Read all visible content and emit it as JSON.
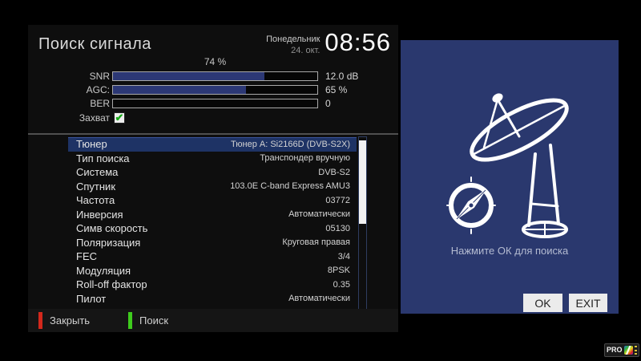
{
  "header": {
    "title": "Поиск сигнала",
    "day": "Понедельник",
    "date": "24. окт.",
    "time": "08:56"
  },
  "signal": {
    "percent_label": "74 %",
    "bars": [
      {
        "label": "SNR",
        "value": "12.0 dB",
        "fill": 74
      },
      {
        "label": "AGC:",
        "value": "65 %",
        "fill": 65
      },
      {
        "label": "BER",
        "value": "0",
        "fill": 0
      }
    ],
    "lock_label": "Захват",
    "lock_checked": true,
    "check_glyph": "✔"
  },
  "settings": {
    "rows": [
      {
        "label": "Тюнер",
        "value": "Тюнер A: Si2166D (DVB-S2X)",
        "selected": true
      },
      {
        "label": "Тип поиска",
        "value": "Транспондер вручную",
        "selected": false
      },
      {
        "label": "Система",
        "value": "DVB-S2",
        "selected": false
      },
      {
        "label": "Спутник",
        "value": "103.0E C-band Express AMU3",
        "selected": false
      },
      {
        "label": "Частота",
        "value": "03772",
        "selected": false
      },
      {
        "label": "Инверсия",
        "value": "Автоматически",
        "selected": false
      },
      {
        "label": "Симв скорость",
        "value": "05130",
        "selected": false
      },
      {
        "label": "Поляризация",
        "value": "Круговая правая",
        "selected": false
      },
      {
        "label": "FEC",
        "value": "3/4",
        "selected": false
      },
      {
        "label": "Модуляция",
        "value": "8PSK",
        "selected": false
      },
      {
        "label": "Roll-off фактор",
        "value": "0.35",
        "selected": false
      },
      {
        "label": "Пилот",
        "value": "Автоматически",
        "selected": false
      }
    ]
  },
  "footer": {
    "close_label": "Закрыть",
    "search_label": "Поиск"
  },
  "right_panel": {
    "message": "Нажмите ОК для поиска",
    "ok_label": "OK",
    "exit_label": "EXIT"
  },
  "watermark": {
    "text": "PRO"
  },
  "colors": {
    "panel_blue": "#2a386e",
    "selected_row_blue": "#1e3365",
    "bar_fill_blue": "#2c3875",
    "key_red": "#d3281c",
    "key_green": "#3ecb1d",
    "check_green": "#18a818"
  }
}
